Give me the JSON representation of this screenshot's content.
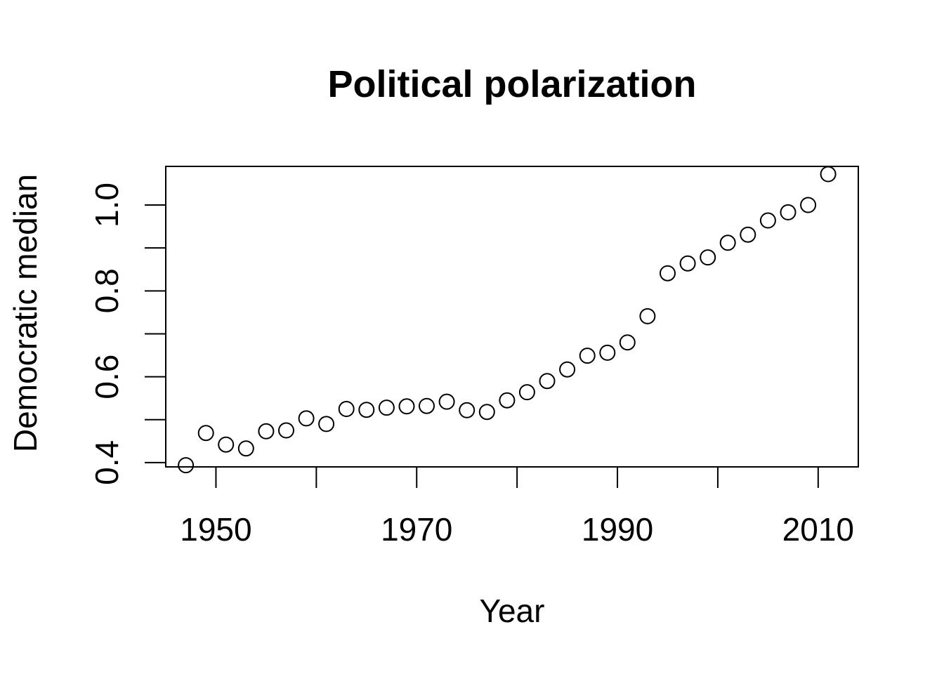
{
  "chart_data": {
    "type": "scatter",
    "title": "Political polarization",
    "xlabel": "Year",
    "ylabel": "Democratic median",
    "xlim": [
      1945,
      2014
    ],
    "ylim": [
      0.39,
      1.09
    ],
    "x_ticks": [
      1950,
      1960,
      1970,
      1980,
      1990,
      2000,
      2010
    ],
    "x_tick_labels": [
      "1950",
      "",
      "1970",
      "",
      "1990",
      "",
      "2010"
    ],
    "y_ticks": [
      0.4,
      0.5,
      0.6,
      0.7,
      0.8,
      0.9,
      1.0
    ],
    "y_tick_labels": [
      "0.4",
      "",
      "0.6",
      "",
      "0.8",
      "",
      "1.0"
    ],
    "grid": false,
    "marker": "open-circle",
    "series": [
      {
        "x": [
          1947,
          1949,
          1951,
          1953,
          1955,
          1957,
          1959,
          1961,
          1963,
          1965,
          1967,
          1969,
          1971,
          1973,
          1975,
          1977,
          1979,
          1981,
          1983,
          1985,
          1987,
          1989,
          1991,
          1993,
          1995,
          1997,
          1999,
          2001,
          2003,
          2005,
          2007,
          2009,
          2011
        ],
        "y": [
          0.394,
          0.469,
          0.442,
          0.433,
          0.473,
          0.475,
          0.503,
          0.49,
          0.525,
          0.523,
          0.528,
          0.531,
          0.532,
          0.542,
          0.522,
          0.518,
          0.545,
          0.564,
          0.59,
          0.617,
          0.649,
          0.656,
          0.68,
          0.741,
          0.841,
          0.864,
          0.878,
          0.912,
          0.931,
          0.964,
          0.983,
          1.0,
          1.072
        ]
      }
    ]
  }
}
